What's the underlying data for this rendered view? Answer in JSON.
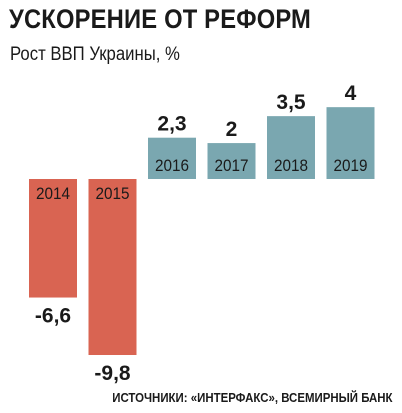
{
  "title": "УСКОРЕНИЕ ОТ РЕФОРМ",
  "subtitle": "Рост ВВП Украины, %",
  "source": "ИСТОЧНИКИ: «ИНТЕРФАКС», ВСЕМИРНЫЙ БАНК",
  "colors": {
    "positive": "#7aa7b0",
    "negative": "#d96452",
    "text": "#1a1a1a"
  },
  "chart_data": {
    "type": "bar",
    "categories": [
      "2014",
      "2015",
      "2016",
      "2017",
      "2018",
      "2019"
    ],
    "values": [
      -6.6,
      -9.8,
      2.3,
      2,
      3.5,
      4
    ],
    "value_labels": [
      "-6,6",
      "-9,8",
      "2,3",
      "2",
      "3,5",
      "4"
    ],
    "ylim": [
      -9.8,
      4
    ]
  }
}
